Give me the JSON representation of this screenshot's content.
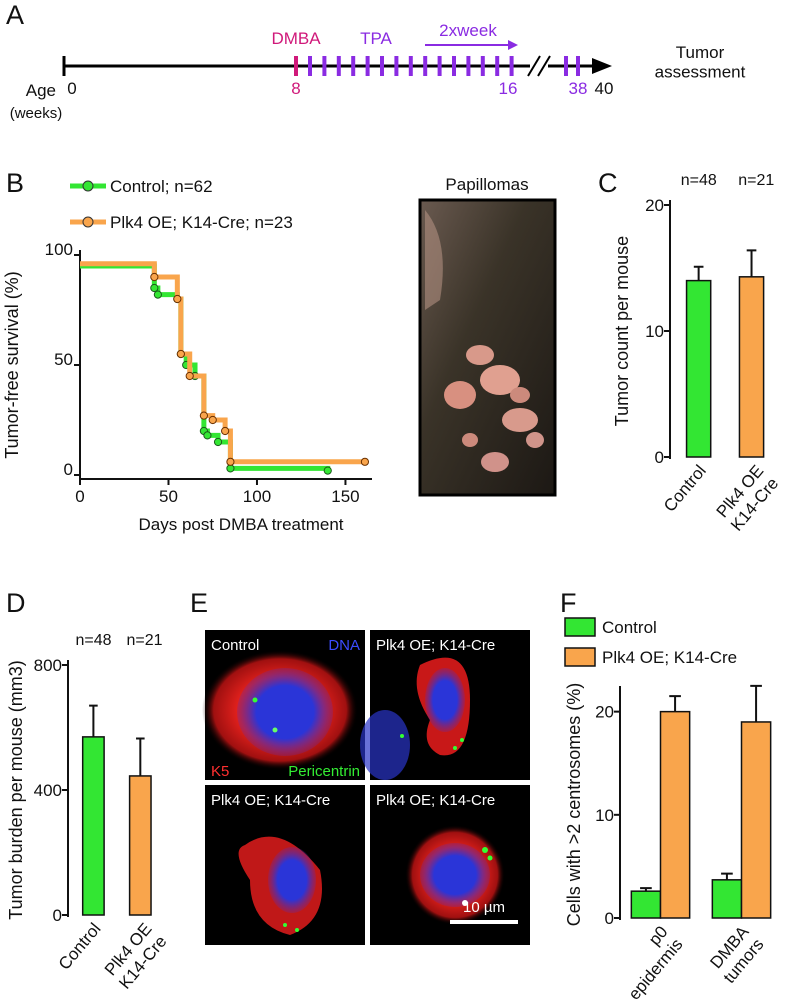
{
  "figure": {
    "panel_labels": [
      "A",
      "B",
      "C",
      "D",
      "E",
      "F"
    ],
    "timeline": {
      "axis_label": "Age",
      "axis_unit": "(weeks)",
      "ticks": [
        0,
        8,
        16,
        38,
        40
      ],
      "phases": [
        "DMBA",
        "TPA",
        "2xweek"
      ],
      "endpoint": "Tumor\nassessment"
    },
    "photo": {
      "title": "Papillomas"
    },
    "micrographs": {
      "panels": [
        "Control",
        "Plk4 OE; K14-Cre",
        "Plk4 OE; K14-Cre",
        "Plk4 OE; K14-Cre"
      ],
      "stain_labels": [
        "DNA",
        "K5",
        "Pericentrin"
      ],
      "scale_bar": "10 µm"
    }
  },
  "chart_data": [
    {
      "type": "step",
      "xlabel": "Days post DMBA treatment",
      "ylabel": "Tumor-free survival (%)",
      "xlim": [
        0,
        165
      ],
      "xticks": [
        0,
        50,
        100,
        150
      ],
      "ylim": [
        0,
        100
      ],
      "yticks": [
        0,
        50,
        100
      ],
      "series": [
        {
          "name": "Control; n=62",
          "color": "#33e633",
          "x": [
            0,
            42,
            44,
            55,
            57,
            60,
            65,
            70,
            72,
            78,
            85,
            140
          ],
          "values": [
            95,
            85,
            82,
            80,
            55,
            50,
            45,
            20,
            18,
            15,
            3,
            2
          ]
        },
        {
          "name": "Plk4 OE; K14-Cre; n=23",
          "color": "#f9a54c",
          "x": [
            0,
            42,
            55,
            57,
            62,
            70,
            75,
            82,
            85,
            161
          ],
          "values": [
            96,
            90,
            80,
            55,
            45,
            27,
            25,
            20,
            6,
            6
          ]
        }
      ]
    },
    {
      "type": "bar",
      "ylabel": "Tumor count per mouse",
      "categories": [
        "Control",
        "Plk4 OE\nK14-Cre"
      ],
      "values": [
        14,
        14.3
      ],
      "errors": [
        1.1,
        2.1
      ],
      "colors": [
        "#33e633",
        "#f9a54c"
      ],
      "annotations": [
        "n=48",
        "n=21"
      ],
      "ylim": [
        0,
        20
      ],
      "yticks": [
        0,
        10,
        20
      ]
    },
    {
      "type": "bar",
      "ylabel": "Tumor burden per mouse (mm3)",
      "categories": [
        "Control",
        "Plk4 OE\nK14-Cre"
      ],
      "values": [
        570,
        445
      ],
      "errors": [
        100,
        120
      ],
      "colors": [
        "#33e633",
        "#f9a54c"
      ],
      "annotations": [
        "n=48",
        "n=21"
      ],
      "ylim": [
        0,
        800
      ],
      "yticks": [
        0,
        400,
        800
      ]
    },
    {
      "type": "bar",
      "ylabel": "Cells with >2 centrosomes (%)",
      "categories": [
        "p0\nepidermis",
        "DMBA\ntumors"
      ],
      "ylim": [
        0,
        22
      ],
      "yticks": [
        0,
        10,
        20
      ],
      "series": [
        {
          "name": "Control",
          "color": "#33e633",
          "values": [
            2.6,
            3.7
          ],
          "errors": [
            0.3,
            0.6
          ]
        },
        {
          "name": "Plk4 OE; K14-Cre",
          "color": "#f9a54c",
          "values": [
            20,
            19
          ],
          "errors": [
            1.5,
            3.5
          ]
        }
      ]
    }
  ]
}
